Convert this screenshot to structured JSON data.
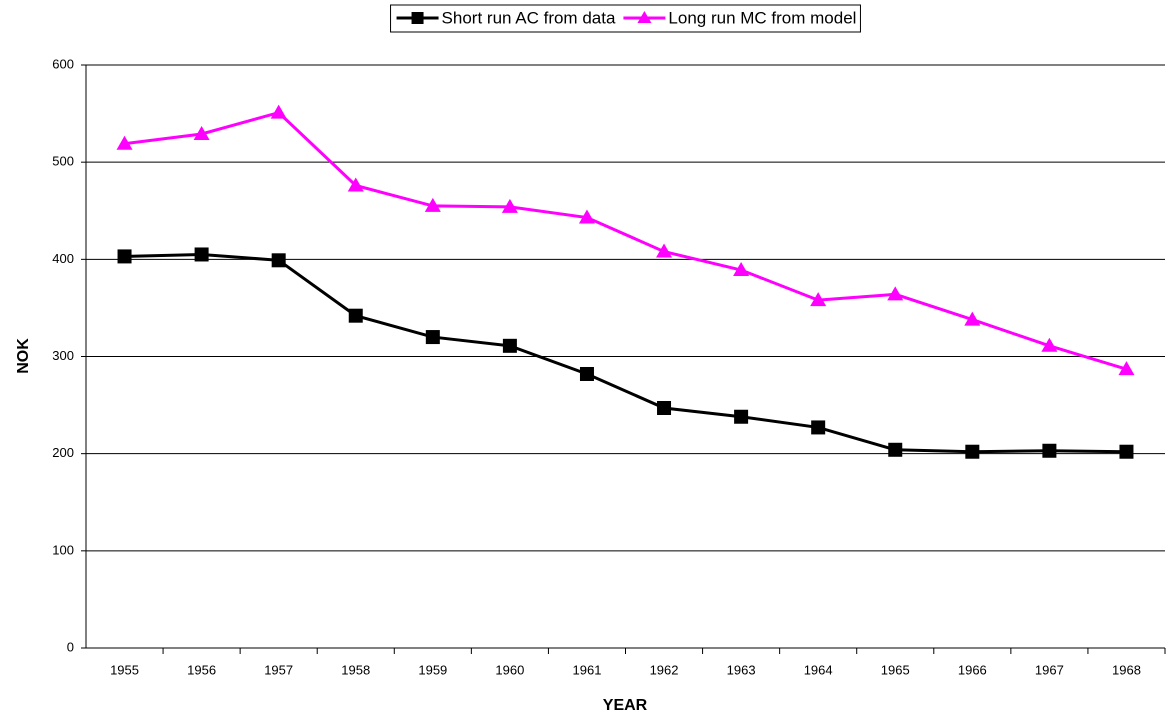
{
  "chart_data": {
    "type": "line",
    "x_label": "YEAR",
    "y_label": "NOK",
    "categories": [
      "1955",
      "1956",
      "1957",
      "1958",
      "1959",
      "1960",
      "1961",
      "1962",
      "1963",
      "1964",
      "1965",
      "1966",
      "1967",
      "1968"
    ],
    "series": [
      {
        "name": "Short run AC from data",
        "color": "#000000",
        "marker": "square",
        "values": [
          403,
          405,
          399,
          342,
          320,
          311,
          282,
          247,
          238,
          227,
          204,
          202,
          203,
          202
        ]
      },
      {
        "name": "Long run MC from model",
        "color": "#ff00ff",
        "marker": "triangle",
        "values": [
          519,
          529,
          551,
          476,
          455,
          454,
          443,
          408,
          389,
          358,
          364,
          338,
          311,
          287
        ]
      }
    ],
    "ylim": [
      0,
      600
    ],
    "yticks": [
      0,
      100,
      200,
      300,
      400,
      500,
      600
    ],
    "grid": true,
    "legend": "top"
  }
}
